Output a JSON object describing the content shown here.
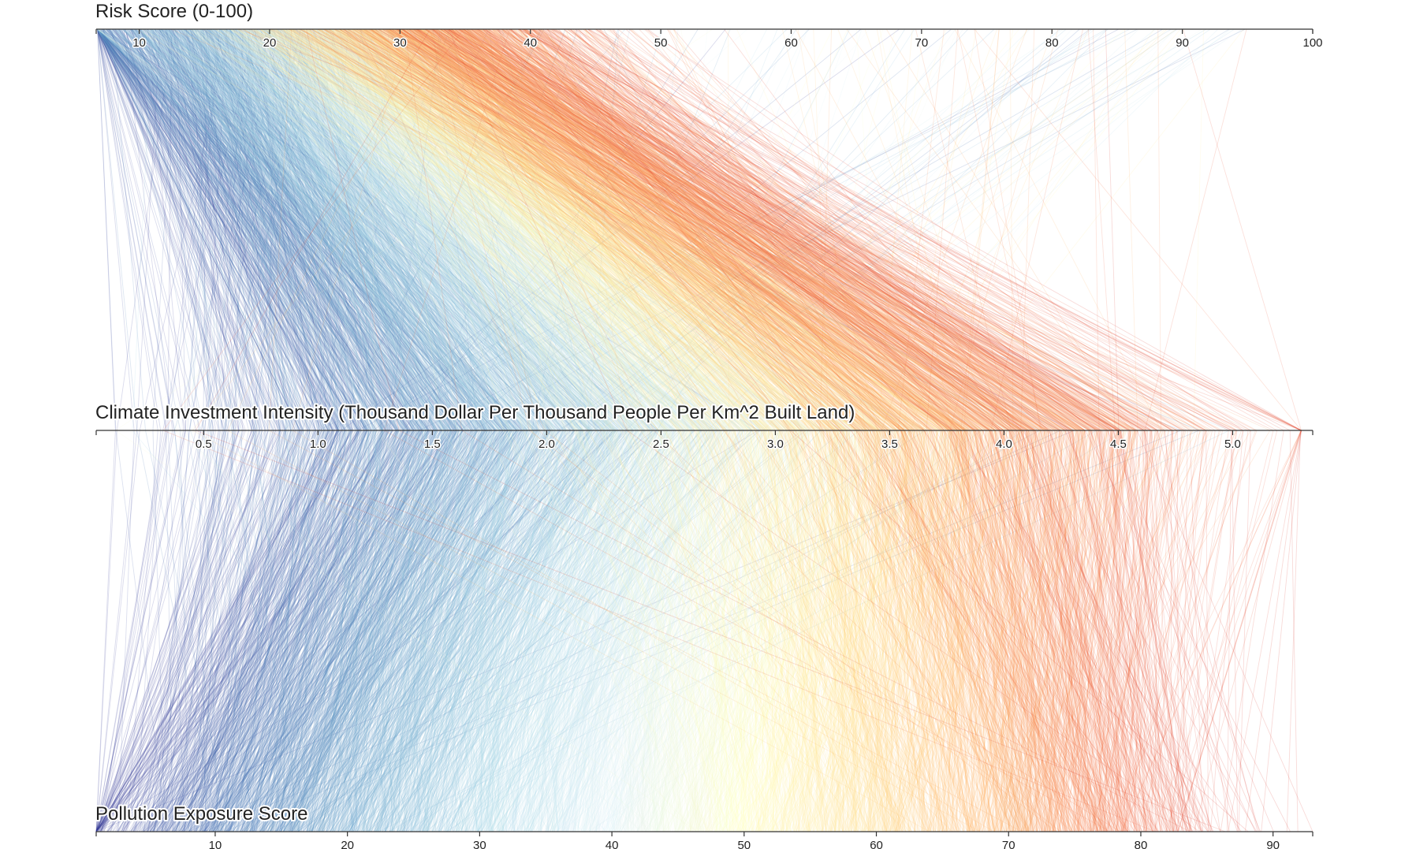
{
  "chart_data": {
    "type": "parallel-coordinates",
    "title": "",
    "record_count_estimate": 4000,
    "color_by": "Pollution Exposure Score",
    "color_scale": [
      "#313695",
      "#4575b4",
      "#74add1",
      "#abd9e9",
      "#e0f3f8",
      "#ffffbf",
      "#fee090",
      "#fdae61",
      "#f46d43",
      "#d73027"
    ],
    "line_opacity": 0.18,
    "dimensions": [
      {
        "key": "risk",
        "label": "Risk Score (0-100)",
        "domain": [
          6.7,
          100
        ],
        "ticks": [
          {
            "value": 10,
            "label": "10"
          },
          {
            "value": 20,
            "label": "20"
          },
          {
            "value": 30,
            "label": "30"
          },
          {
            "value": 40,
            "label": "40"
          },
          {
            "value": 50,
            "label": "50"
          },
          {
            "value": 60,
            "label": "60"
          },
          {
            "value": 70,
            "label": "70"
          },
          {
            "value": 80,
            "label": "80"
          },
          {
            "value": 90,
            "label": "90"
          },
          {
            "value": 100,
            "label": "100"
          }
        ]
      },
      {
        "key": "investment",
        "label": "Climate Investment Intensity (Thousand Dollar Per Thousand People Per Km^2 Built Land)",
        "domain": [
          0.03,
          5.35
        ],
        "ticks": [
          {
            "value": 0.5,
            "label": "0.5"
          },
          {
            "value": 1.0,
            "label": "1.0"
          },
          {
            "value": 1.5,
            "label": "1.5"
          },
          {
            "value": 2.0,
            "label": "2.0"
          },
          {
            "value": 2.5,
            "label": "2.5"
          },
          {
            "value": 3.0,
            "label": "3.0"
          },
          {
            "value": 3.5,
            "label": "3.5"
          },
          {
            "value": 4.0,
            "label": "4.0"
          },
          {
            "value": 4.5,
            "label": "4.5"
          },
          {
            "value": 5.0,
            "label": "5.0"
          }
        ]
      },
      {
        "key": "pollution",
        "label": "Pollution Exposure Score",
        "domain": [
          1,
          93
        ],
        "ticks": [
          {
            "value": 10,
            "label": "10"
          },
          {
            "value": 20,
            "label": "20"
          },
          {
            "value": 30,
            "label": "30"
          },
          {
            "value": 40,
            "label": "40"
          },
          {
            "value": 50,
            "label": "50"
          },
          {
            "value": 60,
            "label": "60"
          },
          {
            "value": 70,
            "label": "70"
          },
          {
            "value": 80,
            "label": "80"
          },
          {
            "value": 90,
            "label": "90"
          }
        ]
      }
    ],
    "sample_records": [
      {
        "risk": 10,
        "investment": 1.2,
        "pollution": 4
      },
      {
        "risk": 14,
        "investment": 1.6,
        "pollution": 12
      },
      {
        "risk": 18,
        "investment": 2.0,
        "pollution": 20
      },
      {
        "risk": 22,
        "investment": 2.4,
        "pollution": 30
      },
      {
        "risk": 26,
        "investment": 2.9,
        "pollution": 38
      },
      {
        "risk": 28,
        "investment": 3.5,
        "pollution": 45
      },
      {
        "risk": 30,
        "investment": 3.9,
        "pollution": 52
      },
      {
        "risk": 32,
        "investment": 4.2,
        "pollution": 60
      },
      {
        "risk": 34,
        "investment": 4.3,
        "pollution": 68
      },
      {
        "risk": 36,
        "investment": 4.3,
        "pollution": 76
      }
    ]
  }
}
